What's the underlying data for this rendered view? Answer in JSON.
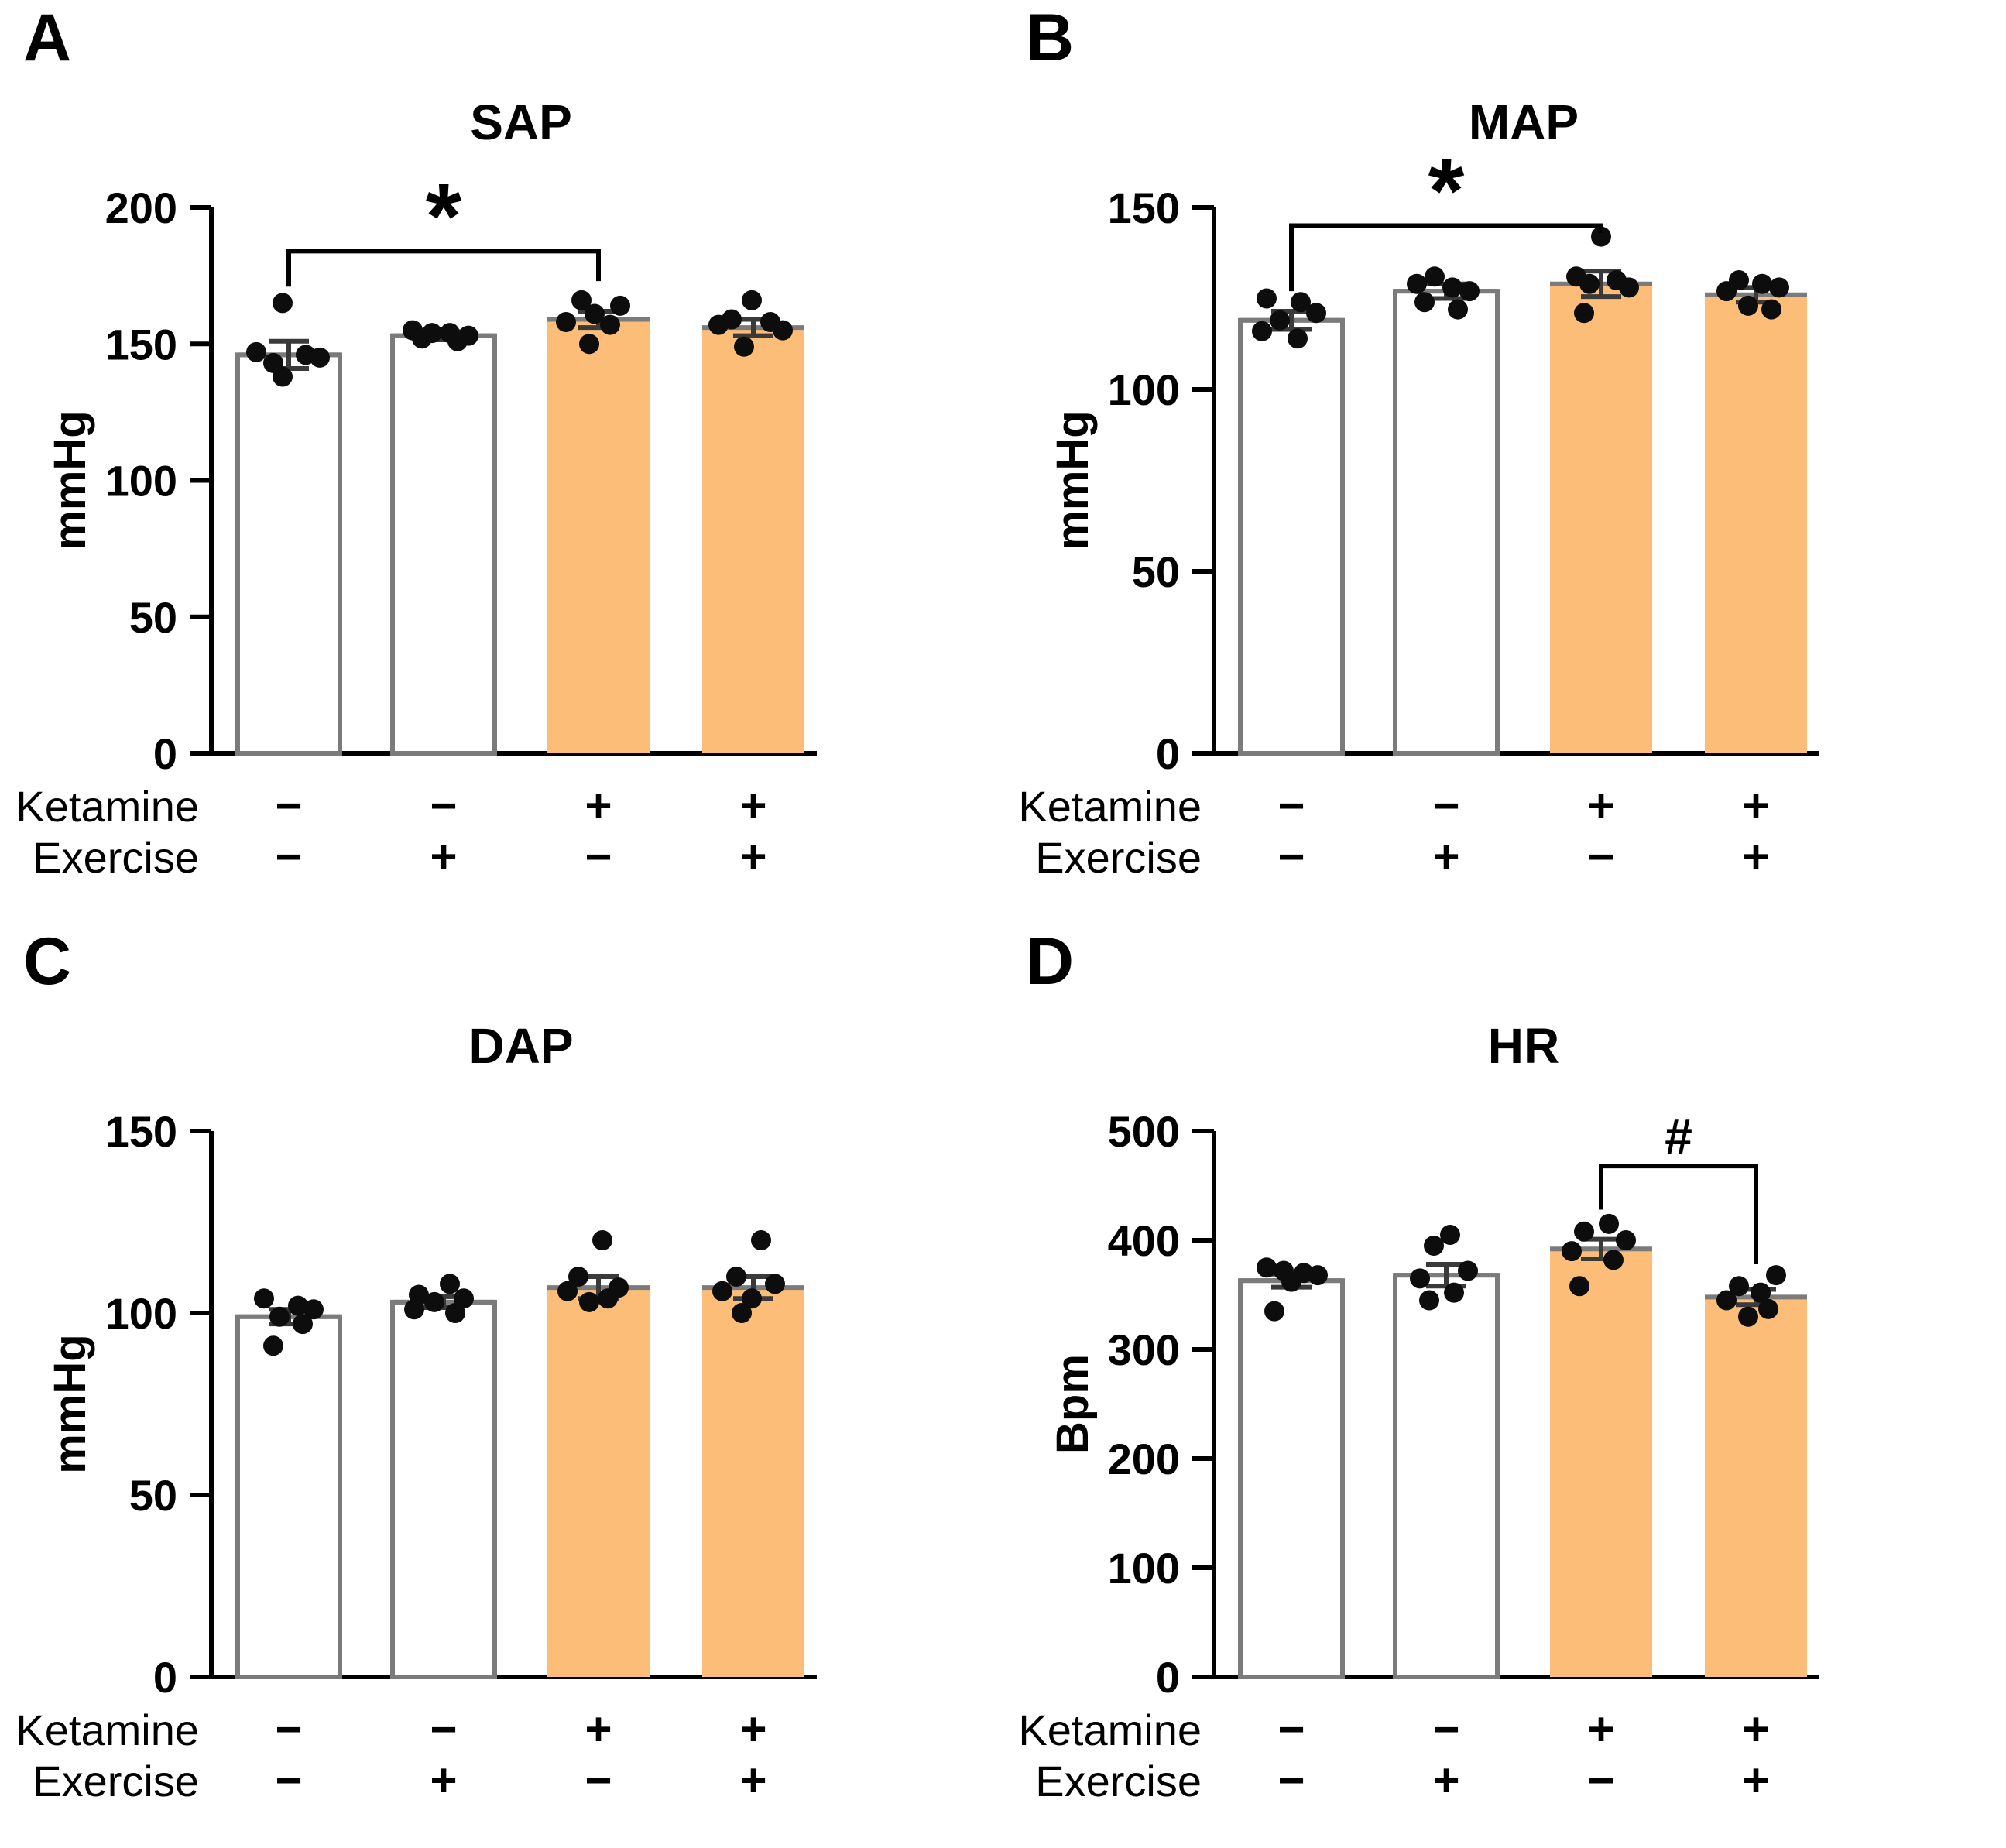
{
  "style": {
    "background": "#ffffff",
    "axis_color": "#000000",
    "bar_outline": "#7b7b7b",
    "orange": "#FBBD78",
    "white": "#ffffff",
    "dot_color": "#0d0d0d",
    "error_color": "#3a3a3a",
    "text_color": "#000000"
  },
  "chart_data": [
    {
      "panel": "A",
      "type": "bar",
      "title": "SAP",
      "ylabel": "mmHg",
      "ylim": [
        0,
        200
      ],
      "yticks": [
        0,
        50,
        100,
        150,
        200
      ],
      "categories": [
        "Ketamine − / Exercise −",
        "Ketamine − / Exercise +",
        "Ketamine + / Exercise −",
        "Ketamine + / Exercise +"
      ],
      "x_rows": [
        {
          "label": "Ketamine",
          "symbols": [
            "−",
            "−",
            "+",
            "+"
          ]
        },
        {
          "label": "Exercise",
          "symbols": [
            "−",
            "+",
            "−",
            "+"
          ]
        }
      ],
      "groups": [
        {
          "mean": 146,
          "sem": 5,
          "fill": "#ffffff",
          "points": [
            [
              -8,
              165
            ],
            [
              -42,
              147
            ],
            [
              22,
              146
            ],
            [
              -20,
              143
            ],
            [
              40,
              145
            ],
            [
              -8,
              138
            ]
          ]
        },
        {
          "mean": 153,
          "sem": 1.5,
          "fill": "#ffffff",
          "points": [
            [
              -40,
              155
            ],
            [
              -15,
              154
            ],
            [
              8,
              154
            ],
            [
              32,
              153
            ],
            [
              -28,
              152
            ],
            [
              18,
              151
            ]
          ]
        },
        {
          "mean": 159,
          "sem": 3,
          "fill": "#FBBD78",
          "points": [
            [
              -22,
              166
            ],
            [
              28,
              164
            ],
            [
              -5,
              161
            ],
            [
              -42,
              158
            ],
            [
              15,
              157
            ],
            [
              -12,
              150
            ]
          ]
        },
        {
          "mean": 156,
          "sem": 3,
          "fill": "#FBBD78",
          "points": [
            [
              -2,
              166
            ],
            [
              -28,
              159
            ],
            [
              22,
              158
            ],
            [
              -45,
              157
            ],
            [
              38,
              155
            ],
            [
              -12,
              149
            ]
          ]
        }
      ],
      "significance": {
        "from": 0,
        "to": 2,
        "label": "*",
        "line": 184,
        "drop_from": 171,
        "drop_to": 173
      }
    },
    {
      "panel": "B",
      "type": "bar",
      "title": "MAP",
      "ylabel": "mmHg",
      "ylim": [
        0,
        150
      ],
      "yticks": [
        0,
        50,
        100,
        150
      ],
      "categories": [
        "Ketamine − / Exercise −",
        "Ketamine − / Exercise +",
        "Ketamine + / Exercise −",
        "Ketamine + / Exercise +"
      ],
      "x_rows": [
        {
          "label": "Ketamine",
          "symbols": [
            "−",
            "−",
            "+",
            "+"
          ]
        },
        {
          "label": "Exercise",
          "symbols": [
            "−",
            "+",
            "−",
            "+"
          ]
        }
      ],
      "groups": [
        {
          "mean": 119,
          "sem": 2.5,
          "fill": "#ffffff",
          "points": [
            [
              -32,
              125
            ],
            [
              12,
              124
            ],
            [
              32,
              121
            ],
            [
              -15,
              119
            ],
            [
              -38,
              116
            ],
            [
              8,
              114
            ]
          ]
        },
        {
          "mean": 127,
          "sem": 2,
          "fill": "#ffffff",
          "points": [
            [
              -15,
              131
            ],
            [
              -38,
              129
            ],
            [
              8,
              128
            ],
            [
              30,
              127
            ],
            [
              -28,
              124
            ],
            [
              15,
              122
            ]
          ]
        },
        {
          "mean": 129,
          "sem": 3.5,
          "fill": "#FBBD78",
          "points": [
            [
              0,
              142
            ],
            [
              -32,
              131
            ],
            [
              20,
              130
            ],
            [
              -15,
              129
            ],
            [
              36,
              128
            ],
            [
              -22,
              121
            ]
          ]
        },
        {
          "mean": 126,
          "sem": 2,
          "fill": "#FBBD78",
          "points": [
            [
              -22,
              130
            ],
            [
              8,
              129
            ],
            [
              30,
              128
            ],
            [
              -38,
              127
            ],
            [
              -10,
              123
            ],
            [
              20,
              122
            ]
          ]
        }
      ],
      "significance": {
        "from": 0,
        "to": 2,
        "label": "*",
        "line": 145,
        "drop_from": 127,
        "drop_to": 143
      }
    },
    {
      "panel": "C",
      "type": "bar",
      "title": "DAP",
      "ylabel": "mmHg",
      "ylim": [
        0,
        150
      ],
      "yticks": [
        0,
        50,
        100,
        150
      ],
      "categories": [
        "Ketamine − / Exercise −",
        "Ketamine − / Exercise +",
        "Ketamine + / Exercise −",
        "Ketamine + / Exercise +"
      ],
      "x_rows": [
        {
          "label": "Ketamine",
          "symbols": [
            "−",
            "−",
            "+",
            "+"
          ]
        },
        {
          "label": "Exercise",
          "symbols": [
            "−",
            "+",
            "−",
            "+"
          ]
        }
      ],
      "groups": [
        {
          "mean": 99,
          "sem": 2,
          "fill": "#ffffff",
          "points": [
            [
              -32,
              104
            ],
            [
              12,
              102
            ],
            [
              32,
              101
            ],
            [
              -12,
              99
            ],
            [
              18,
              97
            ],
            [
              -20,
              91
            ]
          ]
        },
        {
          "mean": 103,
          "sem": 1.5,
          "fill": "#ffffff",
          "points": [
            [
              8,
              108
            ],
            [
              -32,
              105
            ],
            [
              26,
              104
            ],
            [
              -12,
              103
            ],
            [
              -38,
              101
            ],
            [
              15,
              100
            ]
          ]
        },
        {
          "mean": 107,
          "sem": 3,
          "fill": "#FBBD78",
          "points": [
            [
              5,
              120
            ],
            [
              -26,
              110
            ],
            [
              26,
              107
            ],
            [
              -40,
              106
            ],
            [
              12,
              104
            ],
            [
              -12,
              103
            ]
          ]
        },
        {
          "mean": 107,
          "sem": 3,
          "fill": "#FBBD78",
          "points": [
            [
              10,
              120
            ],
            [
              -22,
              110
            ],
            [
              28,
              108
            ],
            [
              -40,
              106
            ],
            [
              -2,
              104
            ],
            [
              -15,
              100
            ]
          ]
        }
      ]
    },
    {
      "panel": "D",
      "type": "bar",
      "title": "HR",
      "ylabel": "Bpm",
      "ylim": [
        0,
        500
      ],
      "yticks": [
        0,
        100,
        200,
        300,
        400,
        500
      ],
      "categories": [
        "Ketamine − / Exercise −",
        "Ketamine − / Exercise +",
        "Ketamine + / Exercise −",
        "Ketamine + / Exercise +"
      ],
      "x_rows": [
        {
          "label": "Ketamine",
          "symbols": [
            "−",
            "−",
            "+",
            "+"
          ]
        },
        {
          "label": "Exercise",
          "symbols": [
            "−",
            "+",
            "−",
            "+"
          ]
        }
      ],
      "groups": [
        {
          "mean": 363,
          "sem": 6,
          "fill": "#ffffff",
          "points": [
            [
              -32,
              375
            ],
            [
              -10,
              372
            ],
            [
              16,
              370
            ],
            [
              34,
              368
            ],
            [
              0,
              362
            ],
            [
              -22,
              335
            ]
          ]
        },
        {
          "mean": 368,
          "sem": 10,
          "fill": "#ffffff",
          "points": [
            [
              5,
              405
            ],
            [
              -16,
              395
            ],
            [
              28,
              372
            ],
            [
              -34,
              365
            ],
            [
              10,
              352
            ],
            [
              -22,
              345
            ]
          ]
        },
        {
          "mean": 392,
          "sem": 9,
          "fill": "#FBBD78",
          "points": [
            [
              10,
              415
            ],
            [
              -22,
              408
            ],
            [
              32,
              400
            ],
            [
              -38,
              390
            ],
            [
              16,
              382
            ],
            [
              -28,
              358
            ]
          ]
        },
        {
          "mean": 348,
          "sem": 7,
          "fill": "#FBBD78",
          "points": [
            [
              26,
              368
            ],
            [
              -22,
              358
            ],
            [
              6,
              352
            ],
            [
              -38,
              345
            ],
            [
              16,
              337
            ],
            [
              -10,
              330
            ]
          ]
        }
      ],
      "significance": {
        "from": 2,
        "to": 3,
        "label": "#",
        "line": 468,
        "drop_from": 428,
        "drop_to": 378
      }
    }
  ]
}
